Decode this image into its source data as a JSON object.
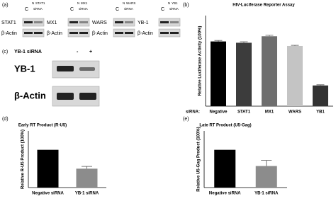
{
  "blots": {
    "panel_a": {
      "label": "(a)",
      "columns": [
        {
          "target": "STAT1",
          "c": "C",
          "n": "N",
          "sirna_target": "STAT1",
          "sirna": "siRNA",
          "control": "β-Actin"
        },
        {
          "target": "MX1",
          "c": "C",
          "n": "N",
          "sirna_target": "MX1",
          "sirna": "siRNA",
          "control": "β-Actin"
        },
        {
          "target": "WARS",
          "c": "C",
          "n": "N",
          "sirna_target": "WARS",
          "sirna": "siRNA",
          "control": "β-Actin"
        },
        {
          "target": "YB-1",
          "c": "C",
          "n": "N",
          "sirna_target": "YB1",
          "sirna": "siRNA",
          "control": "β-Actin"
        }
      ]
    },
    "panel_c": {
      "label": "(c)",
      "treatment": "YB-1 siRNA",
      "minus": "-",
      "plus": "+",
      "target": "YB-1",
      "control": "β-Actin"
    }
  },
  "chart_data": [
    {
      "type": "bar",
      "panel": "(b)",
      "title": "HIV-Luciferase Reporter Assay",
      "ylabel": "Relative Luciferase Activity (100%)",
      "xprefix": "siRNA:",
      "categories": [
        "Negative",
        "STAT1",
        "MX1",
        "WARS",
        "YB1"
      ],
      "values": [
        100,
        98,
        108,
        93,
        32
      ],
      "errors": [
        1.5,
        1.5,
        1.5,
        1,
        1
      ],
      "colors": [
        "#000000",
        "#3c3c3c",
        "#6e6e6e",
        "#c4c4c4",
        "#333333"
      ],
      "ylim": [
        0,
        140
      ]
    },
    {
      "type": "bar",
      "panel": "(d)",
      "title": "Early RT Product (R-U5)",
      "ylabel": "Relative R-U5 Product (100%)",
      "categories": [
        "Negative siRNA",
        "YB-1 siRNA"
      ],
      "values": [
        100,
        50
      ],
      "errors": [
        0,
        6
      ],
      "colors": [
        "#000000",
        "#8c8c8c"
      ],
      "ylim": [
        0,
        150
      ]
    },
    {
      "type": "bar",
      "panel": "(e)",
      "title": "Late RT Product (U5-Gag)",
      "ylabel": "Relative U5-Gag Product (100%)",
      "categories": [
        "Negative siRNA",
        "YB-1 siRNA"
      ],
      "values": [
        100,
        57
      ],
      "errors": [
        0,
        15
      ],
      "colors": [
        "#000000",
        "#8c8c8c"
      ],
      "ylim": [
        0,
        150
      ]
    }
  ]
}
